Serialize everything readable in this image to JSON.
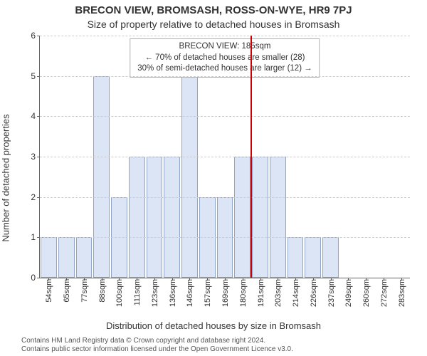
{
  "title": "BRECON VIEW, BROMSASH, ROSS-ON-WYE, HR9 7PJ",
  "subtitle": "Size of property relative to detached houses in Bromsash",
  "ylabel": "Number of detached properties",
  "xlabel": "Distribution of detached houses by size in Bromsash",
  "footer1": "Contains HM Land Registry data © Crown copyright and database right 2024.",
  "footer2": "Contains public sector information licensed under the Open Government Licence v3.0.",
  "chart": {
    "type": "bar",
    "ylim": [
      0,
      6
    ],
    "yticks": [
      0,
      1,
      2,
      3,
      4,
      5,
      6
    ],
    "bar_fill": "#dbe5f6",
    "bar_stroke": "#8fa4c9",
    "grid_color": "#cccccc",
    "axis_color": "#666666",
    "background_color": "#ffffff",
    "marker_color": "#cc0000",
    "marker_value": 185,
    "bar_width": 0.92,
    "font_size_tick": 11,
    "data": [
      {
        "label": "54sqm",
        "value": 1
      },
      {
        "label": "65sqm",
        "value": 1
      },
      {
        "label": "77sqm",
        "value": 1
      },
      {
        "label": "88sqm",
        "value": 5
      },
      {
        "label": "100sqm",
        "value": 2
      },
      {
        "label": "111sqm",
        "value": 3
      },
      {
        "label": "123sqm",
        "value": 3
      },
      {
        "label": "136sqm",
        "value": 3
      },
      {
        "label": "146sqm",
        "value": 5
      },
      {
        "label": "157sqm",
        "value": 2
      },
      {
        "label": "169sqm",
        "value": 2
      },
      {
        "label": "180sqm",
        "value": 3
      },
      {
        "label": "191sqm",
        "value": 3
      },
      {
        "label": "203sqm",
        "value": 3
      },
      {
        "label": "214sqm",
        "value": 1
      },
      {
        "label": "226sqm",
        "value": 1
      },
      {
        "label": "237sqm",
        "value": 1
      },
      {
        "label": "249sqm",
        "value": 0
      },
      {
        "label": "260sqm",
        "value": 0
      },
      {
        "label": "272sqm",
        "value": 0
      },
      {
        "label": "283sqm",
        "value": 0
      }
    ],
    "legend": {
      "line1": "BRECON VIEW: 185sqm",
      "line2": "← 70% of detached houses are smaller (28)",
      "line3": "30% of semi-detached houses are larger (12) →"
    }
  }
}
